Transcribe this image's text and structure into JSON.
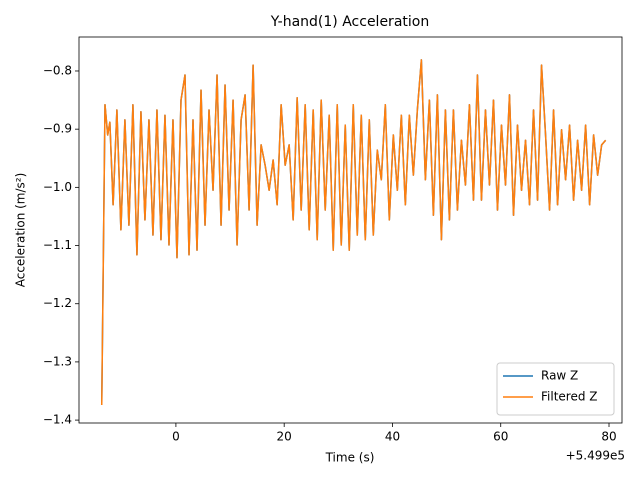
{
  "chart_data": {
    "type": "line",
    "title": "Y-hand(1) Acceleration",
    "x_label": "Time (s)",
    "y_label": "Acceleration (m/s²)",
    "x_offset_text": "+5.499e5",
    "xlim": [
      549882.1,
      549982.4
    ],
    "ylim": [
      -1.405,
      -0.7416
    ],
    "xticks": [
      {
        "value": 549900,
        "label": "0"
      },
      {
        "value": 549920,
        "label": "20"
      },
      {
        "value": 549940,
        "label": "40"
      },
      {
        "value": 549960,
        "label": "60"
      },
      {
        "value": 549980,
        "label": "80"
      }
    ],
    "yticks": [
      {
        "value": -1.4,
        "label": "−1.4"
      },
      {
        "value": -1.3,
        "label": "−1.3"
      },
      {
        "value": -1.2,
        "label": "−1.2"
      },
      {
        "value": -1.1,
        "label": "−1.1"
      },
      {
        "value": -1.0,
        "label": "−1.0"
      },
      {
        "value": -0.9,
        "label": "−0.9"
      },
      {
        "value": -0.8,
        "label": "−0.8"
      }
    ],
    "legend": "lower right",
    "x": [
      549886.3,
      549886.9,
      549887.4,
      549887.8,
      549888.4,
      549889.1,
      549889.84,
      549890.58,
      549891.32,
      549892.06,
      549892.8,
      549893.54,
      549894.28,
      549895.02,
      549895.76,
      549896.5,
      549897.24,
      549897.98,
      549898.72,
      549899.46,
      549900.2,
      549900.94,
      549901.68,
      549902.42,
      549903.16,
      549903.9,
      549904.64,
      549905.38,
      549906.12,
      549906.86,
      549907.6,
      549908.34,
      549909.08,
      549909.82,
      549910.56,
      549911.3,
      549912.04,
      549912.78,
      549913.52,
      549914.26,
      549915.0,
      549915.74,
      549916.48,
      549917.22,
      549917.96,
      549918.7,
      549919.44,
      549920.18,
      549920.92,
      549921.66,
      549922.4,
      549923.14,
      549923.88,
      549924.62,
      549925.36,
      549926.1,
      549926.84,
      549927.58,
      549928.32,
      549929.06,
      549929.8,
      549930.54,
      549931.28,
      549932.02,
      549932.76,
      549933.5,
      549934.24,
      549934.98,
      549935.72,
      549936.46,
      549937.2,
      549937.94,
      549938.68,
      549939.42,
      549940.16,
      549940.9,
      549941.64,
      549942.38,
      549943.12,
      549943.86,
      549944.6,
      549945.34,
      549946.08,
      549946.82,
      549947.56,
      549948.3,
      549949.04,
      549949.78,
      549950.52,
      549951.26,
      549952.0,
      549952.74,
      549953.48,
      549954.22,
      549954.96,
      549955.7,
      549956.44,
      549957.18,
      549957.92,
      549958.66,
      549959.4,
      549960.14,
      549960.88,
      549961.62,
      549962.36,
      549963.1,
      549963.84,
      549964.58,
      549965.32,
      549966.06,
      549966.8,
      549967.54,
      549968.28,
      549969.02,
      549969.76,
      549970.5,
      549971.24,
      549971.98,
      549972.72,
      549973.46,
      549974.2,
      549974.94,
      549975.68,
      549976.42,
      549977.16,
      549977.9,
      549978.64,
      549979.38
    ],
    "series": [
      {
        "name": "Raw Z",
        "color": "#1f77b4",
        "values": [
          -1.374,
          -0.858,
          -0.91,
          -0.888,
          -1.03,
          -0.867,
          -1.073,
          -0.884,
          -1.065,
          -0.858,
          -1.116,
          -0.87,
          -1.056,
          -0.884,
          -1.082,
          -0.867,
          -1.09,
          -0.876,
          -1.099,
          -0.884,
          -1.121,
          -0.85,
          -0.807,
          -1.116,
          -0.884,
          -1.108,
          -0.833,
          -1.065,
          -0.867,
          -1.005,
          -0.807,
          -1.065,
          -0.824,
          -1.039,
          -0.85,
          -1.099,
          -0.884,
          -0.841,
          -1.039,
          -0.79,
          -1.065,
          -0.927,
          -0.962,
          -1.005,
          -0.953,
          -1.03,
          -0.858,
          -0.962,
          -0.927,
          -1.056,
          -0.846,
          -1.039,
          -0.858,
          -1.073,
          -0.867,
          -1.09,
          -0.85,
          -1.039,
          -0.876,
          -1.108,
          -0.858,
          -1.099,
          -0.893,
          -1.108,
          -0.858,
          -1.082,
          -0.876,
          -1.09,
          -0.884,
          -1.082,
          -0.936,
          -0.987,
          -0.858,
          -1.056,
          -0.91,
          -1.005,
          -0.876,
          -1.03,
          -0.876,
          -0.979,
          -0.867,
          -0.781,
          -0.987,
          -0.85,
          -1.048,
          -0.841,
          -1.09,
          -0.867,
          -1.056,
          -0.867,
          -1.039,
          -0.919,
          -0.996,
          -0.858,
          -1.022,
          -0.807,
          -1.022,
          -0.867,
          -0.996,
          -0.85,
          -1.039,
          -0.893,
          -0.996,
          -0.841,
          -1.048,
          -0.893,
          -1.005,
          -0.919,
          -1.03,
          -0.867,
          -1.022,
          -0.79,
          -0.91,
          -1.039,
          -0.867,
          -1.03,
          -0.901,
          -0.987,
          -0.893,
          -1.022,
          -0.919,
          -1.005,
          -0.893,
          -1.03,
          -0.91,
          -0.979,
          -0.927,
          -0.919
        ]
      },
      {
        "name": "Filtered Z",
        "color": "#ff7f0e",
        "values": [
          -1.374,
          -0.858,
          -0.91,
          -0.888,
          -1.03,
          -0.867,
          -1.073,
          -0.884,
          -1.065,
          -0.858,
          -1.116,
          -0.87,
          -1.056,
          -0.884,
          -1.082,
          -0.867,
          -1.09,
          -0.876,
          -1.099,
          -0.884,
          -1.121,
          -0.85,
          -0.807,
          -1.116,
          -0.884,
          -1.108,
          -0.833,
          -1.065,
          -0.867,
          -1.005,
          -0.807,
          -1.065,
          -0.824,
          -1.039,
          -0.85,
          -1.099,
          -0.884,
          -0.841,
          -1.039,
          -0.79,
          -1.065,
          -0.927,
          -0.962,
          -1.005,
          -0.953,
          -1.03,
          -0.858,
          -0.962,
          -0.927,
          -1.056,
          -0.846,
          -1.039,
          -0.858,
          -1.073,
          -0.867,
          -1.09,
          -0.85,
          -1.039,
          -0.876,
          -1.108,
          -0.858,
          -1.099,
          -0.893,
          -1.108,
          -0.858,
          -1.082,
          -0.876,
          -1.09,
          -0.884,
          -1.082,
          -0.936,
          -0.987,
          -0.858,
          -1.056,
          -0.91,
          -1.005,
          -0.876,
          -1.03,
          -0.876,
          -0.979,
          -0.867,
          -0.781,
          -0.987,
          -0.85,
          -1.048,
          -0.841,
          -1.09,
          -0.867,
          -1.056,
          -0.867,
          -1.039,
          -0.919,
          -0.996,
          -0.858,
          -1.022,
          -0.807,
          -1.022,
          -0.867,
          -0.996,
          -0.85,
          -1.039,
          -0.893,
          -0.996,
          -0.841,
          -1.048,
          -0.893,
          -1.005,
          -0.919,
          -1.03,
          -0.867,
          -1.022,
          -0.79,
          -0.91,
          -1.039,
          -0.867,
          -1.03,
          -0.901,
          -0.987,
          -0.893,
          -1.022,
          -0.919,
          -1.005,
          -0.893,
          -1.03,
          -0.91,
          -0.979,
          -0.927,
          -0.919
        ]
      }
    ]
  }
}
